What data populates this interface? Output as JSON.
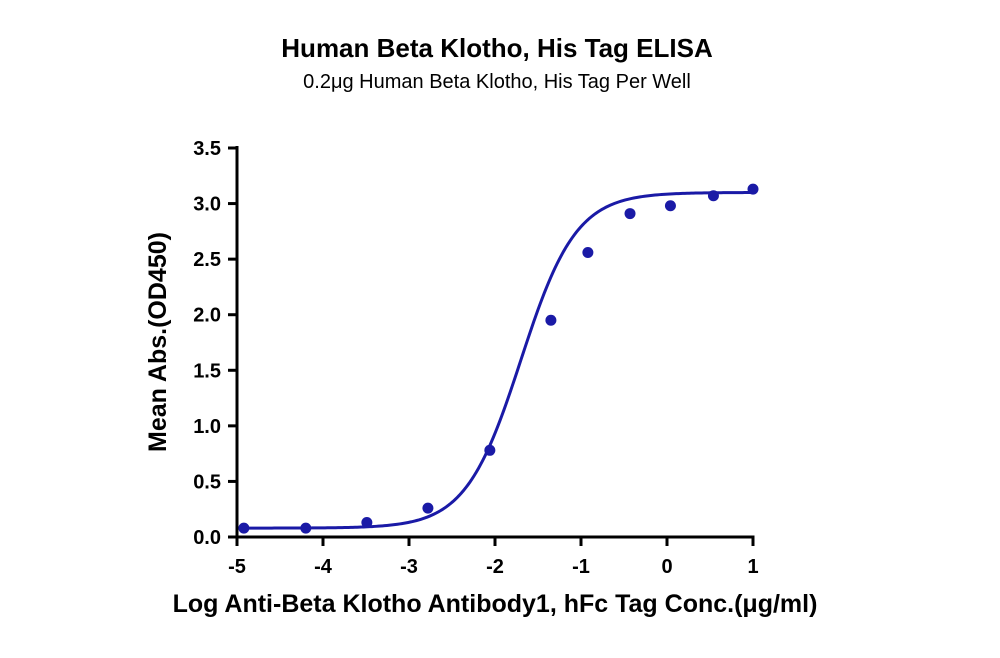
{
  "chart_data": {
    "type": "scatter",
    "title": "Human Beta Klotho, His Tag ELISA",
    "subtitle": "0.2μg Human Beta Klotho, His Tag Per Well",
    "xlabel": "Log Anti-Beta Klotho Antibody1, hFc Tag Conc.(μg/ml)",
    "ylabel": "Mean Abs.(OD450)",
    "xlim": [
      -5,
      1
    ],
    "ylim": [
      0,
      3.5
    ],
    "x_ticks": [
      "-5",
      "-4",
      "-3",
      "-2",
      "-1",
      "0",
      "1"
    ],
    "y_ticks": [
      "0.0",
      "0.5",
      "1.0",
      "1.5",
      "2.0",
      "2.5",
      "3.0",
      "3.5"
    ],
    "grid": false,
    "series": [
      {
        "color": "#1a1aa6",
        "points": {
          "x": [
            -4.92,
            -4.2,
            -3.49,
            -2.78,
            -2.06,
            -1.35,
            -0.92,
            -0.43,
            0.04,
            0.54,
            1.0
          ],
          "y": [
            0.08,
            0.08,
            0.13,
            0.26,
            0.78,
            1.95,
            2.56,
            2.91,
            2.98,
            3.07,
            3.13
          ]
        },
        "fit": {
          "model": "4PL",
          "bottom": 0.08,
          "top": 3.1,
          "logEC50": -1.7,
          "hill": 1.35
        }
      }
    ]
  }
}
